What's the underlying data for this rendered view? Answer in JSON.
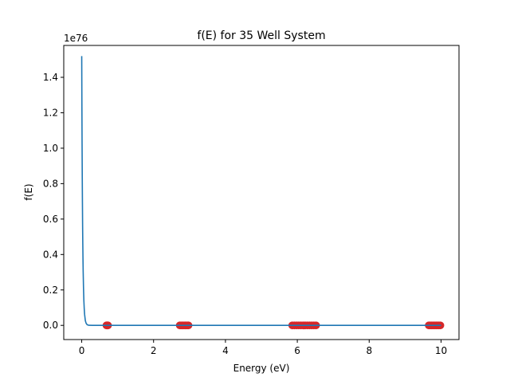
{
  "chart_data": {
    "type": "line",
    "title": "f(E) for 35 Well System",
    "xlabel": "Energy (eV)",
    "ylabel": "f(E)",
    "y_offset_label": "1e76",
    "xlim": [
      -0.5,
      10.5
    ],
    "ylim": [
      -0.08,
      1.58
    ],
    "x_ticks": [
      0,
      2,
      4,
      6,
      8,
      10
    ],
    "x_tick_labels": [
      "0",
      "2",
      "4",
      "6",
      "8",
      "10"
    ],
    "y_ticks": [
      0.0,
      0.2,
      0.4,
      0.6,
      0.8,
      1.0,
      1.2,
      1.4
    ],
    "y_tick_labels": [
      "0.0",
      "0.2",
      "0.4",
      "0.6",
      "0.8",
      "1.0",
      "1.2",
      "1.4"
    ],
    "grid": false,
    "legend": "none",
    "series": [
      {
        "kind": "line",
        "color": "#1f77b4",
        "x": [
          0.0,
          0.005,
          0.01,
          0.015,
          0.02,
          0.025,
          0.03,
          0.035,
          0.04,
          0.05,
          0.06,
          0.07,
          0.08,
          0.1,
          0.12,
          0.15,
          0.2,
          0.3,
          0.5,
          1.0,
          2.0,
          4.0,
          6.0,
          8.0,
          10.0
        ],
        "y": [
          1.52,
          1.25,
          1.02,
          0.84,
          0.69,
          0.56,
          0.46,
          0.38,
          0.31,
          0.21,
          0.14,
          0.094,
          0.063,
          0.028,
          0.013,
          0.004,
          0.0006,
          0.0,
          0.0,
          0.0,
          0.0,
          0.0,
          0.0,
          0.0,
          0.0
        ]
      },
      {
        "kind": "scatter",
        "color": "#d62728",
        "x": [
          0.69,
          0.7,
          0.71,
          0.72,
          0.73,
          2.73,
          2.76,
          2.79,
          2.82,
          2.85,
          2.88,
          2.91,
          2.94,
          2.97,
          5.86,
          5.92,
          5.98,
          6.04,
          6.1,
          6.16,
          6.22,
          6.28,
          6.34,
          6.4,
          6.46,
          6.52,
          9.66,
          9.7,
          9.74,
          9.78,
          9.82,
          9.86,
          9.9,
          9.94,
          9.98
        ],
        "y": [
          0,
          0,
          0,
          0,
          0,
          0,
          0,
          0,
          0,
          0,
          0,
          0,
          0,
          0,
          0,
          0,
          0,
          0,
          0,
          0,
          0,
          0,
          0,
          0,
          0,
          0,
          0,
          0,
          0,
          0,
          0,
          0,
          0,
          0,
          0
        ]
      }
    ]
  }
}
